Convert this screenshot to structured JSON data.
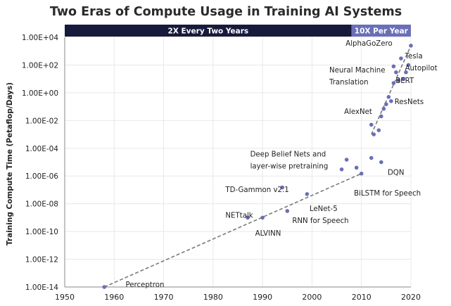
{
  "chart_data": {
    "type": "scatter",
    "title": "Two Eras of Compute Usage in Training AI Systems",
    "xlabel": "",
    "ylabel": "Training Compute Time (Petaflop/Days)",
    "xlim": [
      1950,
      2020
    ],
    "ylim_log10": [
      -14,
      4
    ],
    "y_scale": "log",
    "grid": true,
    "x_ticks": [
      "1950",
      "1960",
      "1970",
      "1980",
      "1990",
      "2000",
      "2010",
      "2020"
    ],
    "y_ticks": [
      "1.00E+04",
      "1.00E+02",
      "1.00E+00",
      "1.00E-02",
      "1.00E-04",
      "1.00E-06",
      "1.00E-08",
      "1.00E-10",
      "1.00E-12",
      "1.00E-14"
    ],
    "eras": [
      {
        "label": "2X Every Two Years",
        "x_start": 1950,
        "x_end": 2008,
        "color": "#171a3b"
      },
      {
        "label": "10X Per Year",
        "x_start": 2008,
        "x_end": 2020,
        "color": "#6a6fb8"
      }
    ],
    "points": [
      {
        "x": 1958,
        "y": 1e-14
      },
      {
        "x": 1987,
        "y": 1e-09
      },
      {
        "x": 1990,
        "y": 1e-09
      },
      {
        "x": 1994,
        "y": 1.5e-07
      },
      {
        "x": 1995,
        "y": 3e-09
      },
      {
        "x": 1999,
        "y": 5e-08
      },
      {
        "x": 2006,
        "y": 3e-06
      },
      {
        "x": 2007,
        "y": 1.5e-05
      },
      {
        "x": 2009,
        "y": 4e-06
      },
      {
        "x": 2010,
        "y": 1.5e-06
      },
      {
        "x": 2012,
        "y": 2e-05
      },
      {
        "x": 2012,
        "y": 0.005
      },
      {
        "x": 2012.5,
        "y": 0.001
      },
      {
        "x": 2013.5,
        "y": 0.002
      },
      {
        "x": 2014,
        "y": 1e-05
      },
      {
        "x": 2014,
        "y": 0.02
      },
      {
        "x": 2014.5,
        "y": 0.07
      },
      {
        "x": 2015,
        "y": 0.15
      },
      {
        "x": 2015.5,
        "y": 0.5
      },
      {
        "x": 2016,
        "y": 0.25
      },
      {
        "x": 2016.5,
        "y": 5
      },
      {
        "x": 2016.5,
        "y": 80
      },
      {
        "x": 2017,
        "y": 30
      },
      {
        "x": 2017.5,
        "y": 8
      },
      {
        "x": 2018,
        "y": 300
      },
      {
        "x": 2018.5,
        "y": 10
      },
      {
        "x": 2019,
        "y": 30
      },
      {
        "x": 2019.5,
        "y": 100
      },
      {
        "x": 2020,
        "y": 2500
      }
    ],
    "trendlines": [
      {
        "x": [
          1958,
          2010
        ],
        "y": [
          1e-14,
          1.5e-06
        ]
      },
      {
        "x": [
          2012,
          2020
        ],
        "y": [
          0.001,
          2500
        ]
      }
    ],
    "annotations": [
      {
        "lines": [
          "Perceptron"
        ],
        "x": 1962.3,
        "y": 1e-14
      },
      {
        "lines": [
          "NETtalk"
        ],
        "x": 1982.5,
        "y": 1e-09
      },
      {
        "lines": [
          "ALVINN"
        ],
        "x": 1988.5,
        "y": 5e-11
      },
      {
        "lines": [
          "RNN for Speech"
        ],
        "x": 1996,
        "y": 4e-10
      },
      {
        "lines": [
          "LeNet-5"
        ],
        "x": 1999.5,
        "y": 3e-09
      },
      {
        "lines": [
          "TD-Gammon v2.1"
        ],
        "x": 1982.5,
        "y": 7e-08
      },
      {
        "lines": [
          "Deep Belief Nets and",
          "layer-wise pretraining"
        ],
        "x": 1987.5,
        "y": 2.5e-05
      },
      {
        "lines": [
          "BiLSTM for Speech"
        ],
        "x": 2008.5,
        "y": 4e-08
      },
      {
        "lines": [
          "DQN"
        ],
        "x": 2015.3,
        "y": 1.2e-06
      },
      {
        "lines": [
          "AlexNet"
        ],
        "x": 2006.5,
        "y": 0.03
      },
      {
        "lines": [
          "ResNets"
        ],
        "x": 2016.7,
        "y": 0.15
      },
      {
        "lines": [
          "Neural Machine",
          "Translation"
        ],
        "x": 2003.5,
        "y": 30
      },
      {
        "lines": [
          "BERT"
        ],
        "x": 2016.9,
        "y": 5
      },
      {
        "lines": [
          "Tesla",
          "Autopilot"
        ],
        "x": 2018.8,
        "y": 300
      },
      {
        "lines": [
          "AlphaGoZero"
        ],
        "x": 2006.8,
        "y": 2500
      }
    ]
  }
}
